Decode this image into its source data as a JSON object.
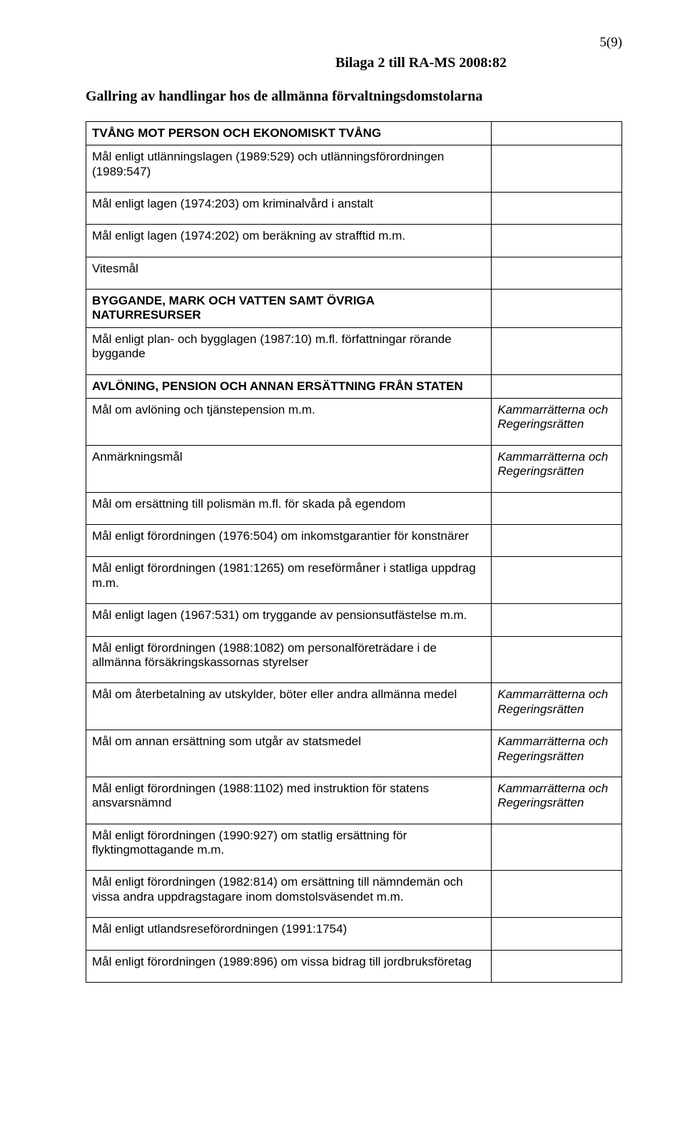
{
  "page_number": "5(9)",
  "appendix_line": "Bilaga 2 till RA-MS 2008:82",
  "document_title": "Gallring av handlingar hos de allmänna förvaltningsdomstolarna",
  "note_text": "Kammarrätterna och Regeringsrätten",
  "rows": {
    "s1": "TVÅNG MOT PERSON OCH EKONOMISKT TVÅNG",
    "r1": "Mål enligt utlänningslagen (1989:529) och utlänningsförordningen (1989:547)",
    "r2": "Mål enligt lagen (1974:203) om kriminalvård i anstalt",
    "r3": "Mål enligt lagen (1974:202) om beräkning av strafftid m.m.",
    "r4": "Vitesmål",
    "s2": "BYGGANDE, MARK OCH VATTEN SAMT ÖVRIGA NATURRESURSER",
    "r5": "Mål enligt plan- och bygglagen (1987:10) m.fl. författningar rörande byggande",
    "s3": "AVLÖNING, PENSION OCH ANNAN ERSÄTTNING FRÅN STATEN",
    "r6": "Mål om avlöning och tjänstepension m.m.",
    "r7": "Anmärkningsmål",
    "r8": "Mål om ersättning till polismän m.fl. för skada på egendom",
    "r9": "Mål enligt förordningen (1976:504) om inkomstgarantier för konstnärer",
    "r10": "Mål enligt förordningen (1981:1265) om reseförmåner i statliga uppdrag m.m.",
    "r11": "Mål enligt lagen (1967:531) om tryggande av pensionsutfästelse m.m.",
    "r12": "Mål enligt förordningen (1988:1082) om personalföreträdare i de allmänna försäkringskassornas styrelser",
    "r13": "Mål om återbetalning av utskylder, böter eller andra allmänna medel",
    "r14": "Mål om annan ersättning som utgår av statsmedel",
    "r15": "Mål enligt förordningen (1988:1102) med instruktion för statens ansvarsnämnd",
    "r16": "Mål enligt förordningen (1990:927) om statlig ersättning för flyktingmottagande m.m.",
    "r17": "Mål enligt förordningen (1982:814) om ersättning till nämndemän och vissa andra uppdragstagare inom domstolsväsendet m.m.",
    "r18": "Mål enligt utlandsreseförordningen (1991:1754)",
    "r19": "Mål enligt förordningen (1989:896) om vissa bidrag till jordbruksföretag"
  }
}
